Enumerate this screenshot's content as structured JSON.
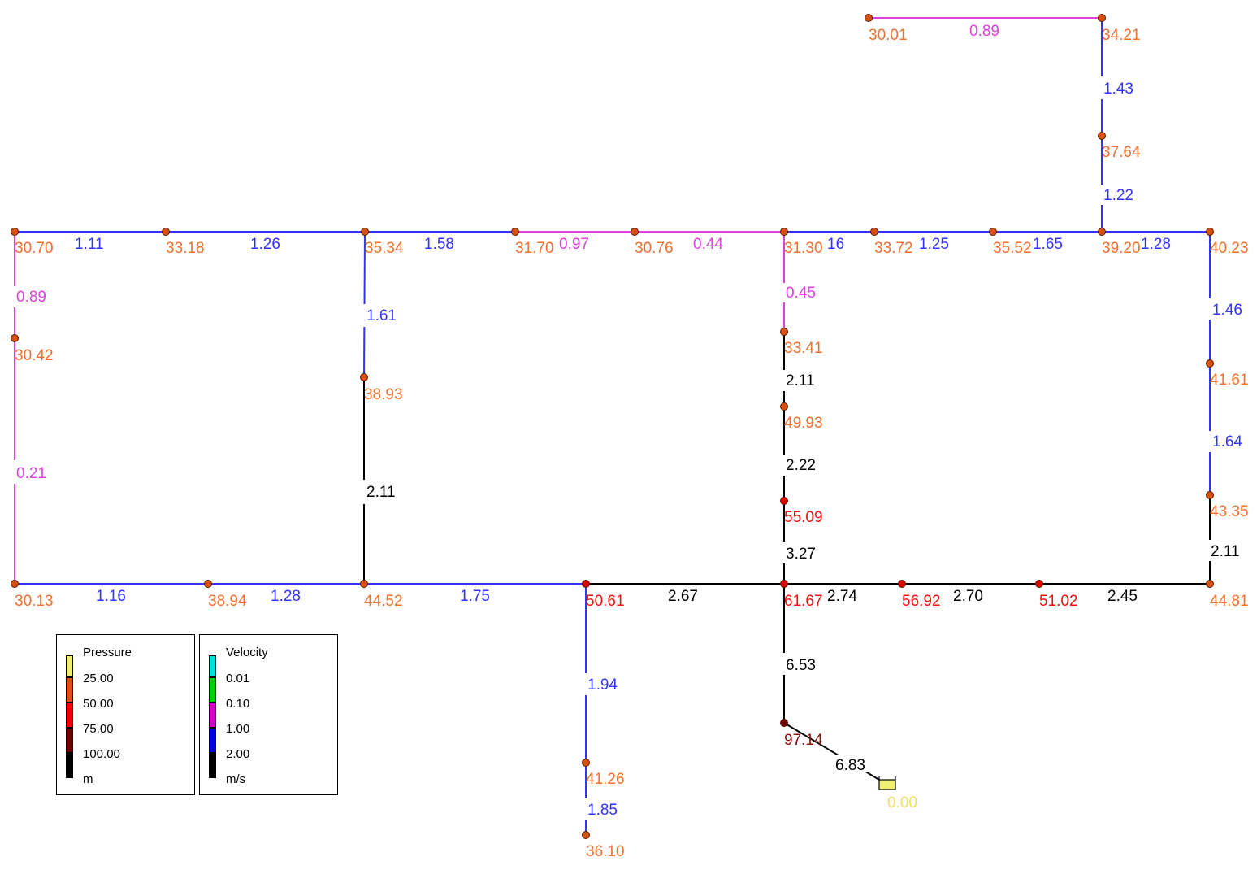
{
  "colors": {
    "pipe": {
      "black": "#000000",
      "blue": "#3333ff",
      "magenta": "#e040e0"
    },
    "label": {
      "orange": "#f07030",
      "red": "#ee1111",
      "darkred": "#881010",
      "yellow": "#f0e060"
    },
    "node": {
      "orange": "#d85010",
      "red": "#dd0000",
      "darkred": "#700000"
    }
  },
  "nodes": [
    {
      "id": "n1",
      "label": "30.70",
      "color": "orange"
    },
    {
      "id": "n2",
      "label": "33.18",
      "color": "orange"
    },
    {
      "id": "n3",
      "label": "35.34",
      "color": "orange"
    },
    {
      "id": "n4",
      "label": "31.70",
      "color": "orange"
    },
    {
      "id": "n5",
      "label": "30.76",
      "color": "orange"
    },
    {
      "id": "n6",
      "label": "31.30",
      "color": "orange"
    },
    {
      "id": "n7",
      "label": "33.72",
      "color": "orange"
    },
    {
      "id": "n8",
      "label": "35.52",
      "color": "orange"
    },
    {
      "id": "n9",
      "label": "39.20",
      "color": "orange"
    },
    {
      "id": "n10",
      "label": "40.23",
      "color": "orange"
    },
    {
      "id": "n11",
      "label": "30.01",
      "color": "orange"
    },
    {
      "id": "n12",
      "label": "34.21",
      "color": "orange"
    },
    {
      "id": "n13",
      "label": "37.64",
      "color": "orange"
    },
    {
      "id": "n14",
      "label": "30.42",
      "color": "orange"
    },
    {
      "id": "n15",
      "label": "30.13",
      "color": "orange"
    },
    {
      "id": "n16",
      "label": "38.94",
      "color": "orange"
    },
    {
      "id": "n17",
      "label": "44.52",
      "color": "orange"
    },
    {
      "id": "n18",
      "label": "38.93",
      "color": "orange"
    },
    {
      "id": "n19",
      "label": "50.61",
      "color": "red"
    },
    {
      "id": "n20",
      "label": "61.67",
      "color": "red"
    },
    {
      "id": "n21",
      "label": "56.92",
      "color": "red"
    },
    {
      "id": "n22",
      "label": "51.02",
      "color": "red"
    },
    {
      "id": "n23",
      "label": "44.81",
      "color": "orange"
    },
    {
      "id": "n24",
      "label": "33.41",
      "color": "orange"
    },
    {
      "id": "n25",
      "label": "49.93",
      "color": "orange"
    },
    {
      "id": "n26",
      "label": "55.09",
      "color": "red"
    },
    {
      "id": "n27",
      "label": "41.61",
      "color": "orange"
    },
    {
      "id": "n28",
      "label": "43.35",
      "color": "orange"
    },
    {
      "id": "n29",
      "label": "41.26",
      "color": "orange"
    },
    {
      "id": "n30",
      "label": "36.10",
      "color": "orange"
    },
    {
      "id": "n31",
      "label": "97.14",
      "color": "darkred"
    }
  ],
  "reservoir": {
    "label": "0.00",
    "color": "yellow"
  },
  "pipes": [
    {
      "from": "n1",
      "to": "n2",
      "label": "1.11",
      "color": "blue"
    },
    {
      "from": "n2",
      "to": "n3",
      "label": "1.26",
      "color": "blue"
    },
    {
      "from": "n3",
      "to": "n4",
      "label": "1.58",
      "color": "blue"
    },
    {
      "from": "n4",
      "to": "n5",
      "label": "0.97",
      "color": "magenta"
    },
    {
      "from": "n5",
      "to": "n6",
      "label": "0.44",
      "color": "magenta"
    },
    {
      "from": "n6",
      "to": "n7",
      "label": "16",
      "color": "blue"
    },
    {
      "from": "n7",
      "to": "n8",
      "label": "1.25",
      "color": "blue"
    },
    {
      "from": "n8",
      "to": "n9",
      "label": "1.65",
      "color": "blue"
    },
    {
      "from": "n9",
      "to": "n10",
      "label": "1.28",
      "color": "blue"
    },
    {
      "from": "n11",
      "to": "n12",
      "label": "0.89",
      "color": "magenta"
    },
    {
      "from": "n12",
      "to": "n13",
      "label": "1.43",
      "color": "blue"
    },
    {
      "from": "n13",
      "to": "n9",
      "label": "1.22",
      "color": "blue"
    },
    {
      "from": "n1",
      "to": "n14",
      "label": "0.89",
      "color": "magenta"
    },
    {
      "from": "n14",
      "to": "n15",
      "label": "0.21",
      "color": "magenta"
    },
    {
      "from": "n15",
      "to": "n16",
      "label": "1.16",
      "color": "blue"
    },
    {
      "from": "n16",
      "to": "n17",
      "label": "1.28",
      "color": "blue"
    },
    {
      "from": "n3",
      "to": "n18",
      "label": "1.61",
      "color": "blue"
    },
    {
      "from": "n18",
      "to": "n17",
      "label": "2.11",
      "color": "black"
    },
    {
      "from": "n17",
      "to": "n19",
      "label": "1.75",
      "color": "blue"
    },
    {
      "from": "n19",
      "to": "n20",
      "label": "2.67",
      "color": "black"
    },
    {
      "from": "n20",
      "to": "n21",
      "label": "2.74",
      "color": "black"
    },
    {
      "from": "n21",
      "to": "n22",
      "label": "2.70",
      "color": "black"
    },
    {
      "from": "n22",
      "to": "n23",
      "label": "2.45",
      "color": "black"
    },
    {
      "from": "n6",
      "to": "n24",
      "label": "0.45",
      "color": "magenta"
    },
    {
      "from": "n24",
      "to": "n25",
      "label": "2.11",
      "color": "black"
    },
    {
      "from": "n25",
      "to": "n26",
      "label": "2.22",
      "color": "black"
    },
    {
      "from": "n26",
      "to": "n20",
      "label": "3.27",
      "color": "black"
    },
    {
      "from": "n10",
      "to": "n27",
      "label": "1.46",
      "color": "blue"
    },
    {
      "from": "n27",
      "to": "n28",
      "label": "1.64",
      "color": "blue"
    },
    {
      "from": "n28",
      "to": "n23",
      "label": "2.11",
      "color": "black"
    },
    {
      "from": "n19",
      "to": "n29",
      "label": "1.94",
      "color": "blue"
    },
    {
      "from": "n29",
      "to": "n30",
      "label": "1.85",
      "color": "blue"
    },
    {
      "from": "n20",
      "to": "n31",
      "label": "6.53",
      "color": "black"
    },
    {
      "from": "n31",
      "to": "reservoir",
      "label": "6.83",
      "color": "black"
    }
  ],
  "legends": {
    "pressure": {
      "title": "Pressure",
      "items": [
        {
          "label": "25.00",
          "color": "#f0f070"
        },
        {
          "label": "50.00",
          "color": "#e05010"
        },
        {
          "label": "75.00",
          "color": "#ee0000"
        },
        {
          "label": "100.00",
          "color": "#700000"
        },
        {
          "label": "m",
          "color": "#000000"
        }
      ]
    },
    "velocity": {
      "title": "Velocity",
      "items": [
        {
          "label": "0.01",
          "color": "#00e0e0"
        },
        {
          "label": "0.10",
          "color": "#00d000"
        },
        {
          "label": "1.00",
          "color": "#d000d0"
        },
        {
          "label": "2.00",
          "color": "#0000dd"
        },
        {
          "label": "m/s",
          "color": "#000000"
        }
      ]
    }
  }
}
